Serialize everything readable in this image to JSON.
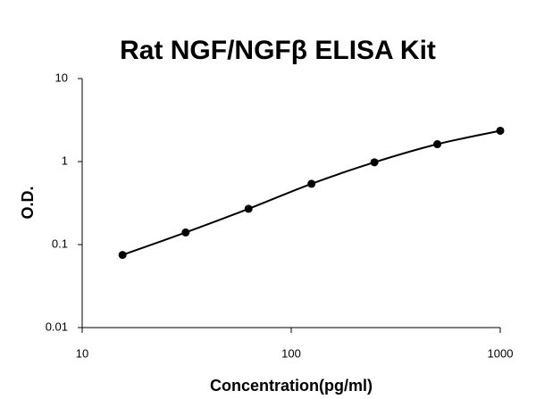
{
  "chart_data": {
    "type": "scatter",
    "title": "Rat NGF/NGFβ ELISA Kit",
    "x_label": "Concentration(pg/ml)",
    "y_label": "O.D.",
    "x": [
      15.6,
      31.25,
      62.5,
      125,
      250,
      500,
      1000
    ],
    "series": [
      {
        "color": "#000000",
        "values": [
          0.075,
          0.14,
          0.27,
          0.54,
          0.98,
          1.62,
          2.35
        ]
      }
    ],
    "xlim": [
      10,
      1000
    ],
    "ylim": [
      0.01,
      10
    ],
    "xticks": [
      10,
      100,
      1000
    ],
    "yticks": [
      0.01,
      0.1,
      1,
      10
    ],
    "log_x": true,
    "log_y": true,
    "grid": false
  }
}
